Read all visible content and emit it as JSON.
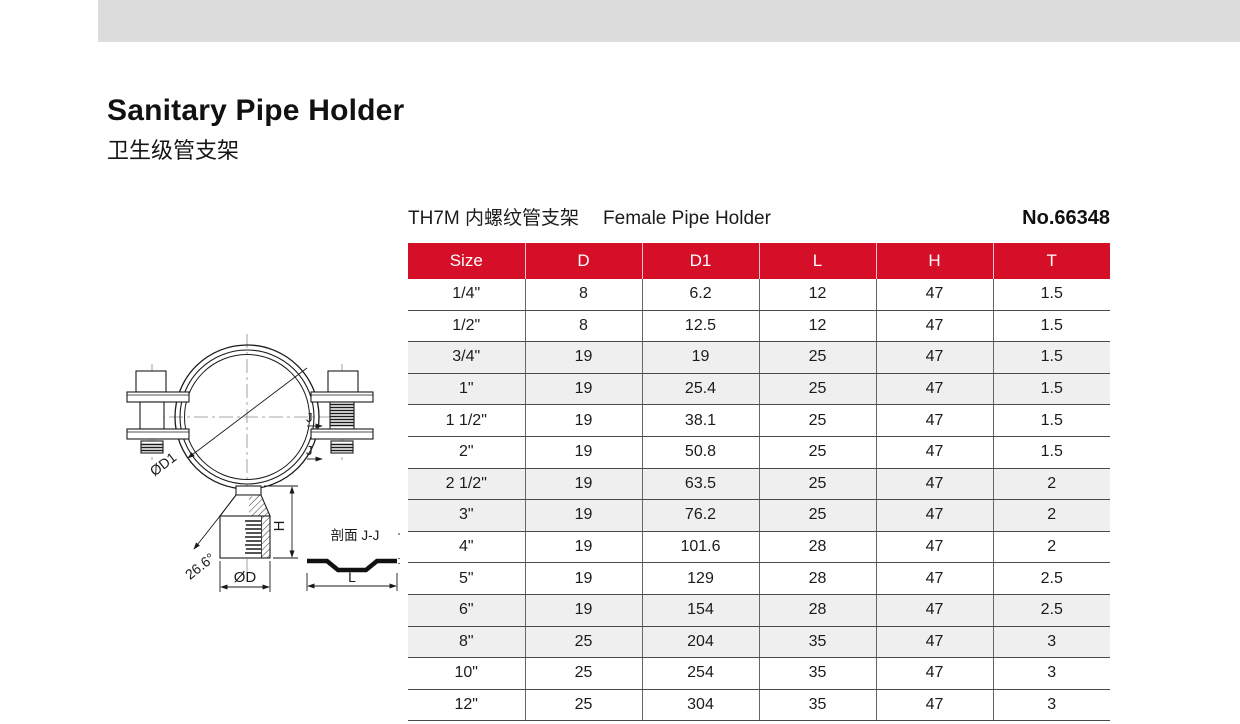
{
  "page": {
    "top_bar_color": "#dcdcdc"
  },
  "header": {
    "title_en": "Sanitary Pipe Holder",
    "title_zh": "卫生级管支架"
  },
  "product": {
    "title_zh": "TH7M 内螺纹管支架",
    "title_en": "Female Pipe Holder",
    "number": "No.66348"
  },
  "table": {
    "accent_color": "#d50f28",
    "shaded_row_color": "#efefef",
    "columns": [
      "Size",
      "D",
      "D1",
      "L",
      "H",
      "T"
    ],
    "rows": [
      [
        "1/4\"",
        "8",
        "6.2",
        "12",
        "47",
        "1.5"
      ],
      [
        "1/2\"",
        "8",
        "12.5",
        "12",
        "47",
        "1.5"
      ],
      [
        "3/4\"",
        "19",
        "19",
        "25",
        "47",
        "1.5"
      ],
      [
        "1\"",
        "19",
        "25.4",
        "25",
        "47",
        "1.5"
      ],
      [
        "1 1/2\"",
        "19",
        "38.1",
        "25",
        "47",
        "1.5"
      ],
      [
        "2\"",
        "19",
        "50.8",
        "25",
        "47",
        "1.5"
      ],
      [
        "2 1/2\"",
        "19",
        "63.5",
        "25",
        "47",
        "2"
      ],
      [
        "3\"",
        "19",
        "76.2",
        "25",
        "47",
        "2"
      ],
      [
        "4\"",
        "19",
        "101.6",
        "28",
        "47",
        "2"
      ],
      [
        "5\"",
        "19",
        "129",
        "28",
        "47",
        "2.5"
      ],
      [
        "6\"",
        "19",
        "154",
        "28",
        "47",
        "2.5"
      ],
      [
        "8\"",
        "25",
        "204",
        "35",
        "47",
        "3"
      ],
      [
        "10\"",
        "25",
        "254",
        "35",
        "47",
        "3"
      ],
      [
        "12\"",
        "25",
        "304",
        "35",
        "47",
        "3"
      ]
    ],
    "shaded_rows": [
      2,
      3,
      6,
      7,
      10,
      11
    ]
  },
  "drawing": {
    "labels": {
      "d1": "ØD1",
      "j_top": "J",
      "j_bottom": "J",
      "h": "H",
      "angle": "26.6°",
      "d": "ØD",
      "section": "剖面 J-J",
      "l": "L"
    }
  }
}
